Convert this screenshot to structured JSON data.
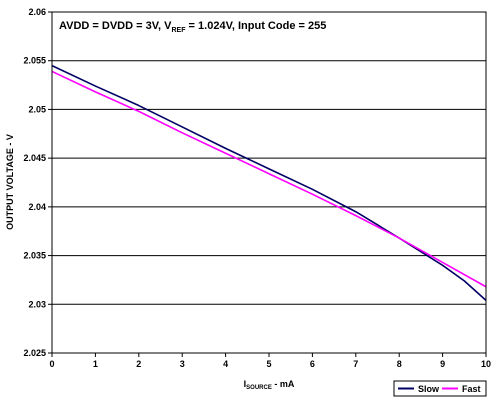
{
  "chart_data": {
    "type": "line",
    "annotation": {
      "prefix": "AVDD = DVDD = 3V, V",
      "sub": "REF",
      "suffix": " = 1.024V, Input Code = 255"
    },
    "xlabel": {
      "main": "I",
      "sub": "SOURCE",
      "suffix": " - mA"
    },
    "ylabel": "OUTPUT VOLTAGE  - V",
    "xlim": [
      0,
      10
    ],
    "ylim": [
      2.025,
      2.06
    ],
    "xticks": [
      "0",
      "1",
      "2",
      "3",
      "4",
      "5",
      "6",
      "7",
      "8",
      "9",
      "10"
    ],
    "yticks": [
      "2.025",
      "2.03",
      "2.035",
      "2.04",
      "2.045",
      "2.05",
      "2.055",
      "2.06"
    ],
    "grid": true,
    "legend_position": "bottom-right",
    "series": [
      {
        "name": "Slow",
        "color": "#000066",
        "x": [
          0,
          1,
          2,
          3,
          4,
          5,
          6,
          7,
          8,
          8.5,
          9,
          9.5,
          10
        ],
        "y": [
          2.0545,
          2.0524,
          2.0504,
          2.0482,
          2.046,
          2.0439,
          2.0418,
          2.0395,
          2.0368,
          2.0354,
          2.034,
          2.0324,
          2.0304
        ]
      },
      {
        "name": "Fast",
        "color": "#ff00ff",
        "x": [
          0,
          1,
          2,
          3,
          4,
          5,
          6,
          7,
          8,
          9,
          10
        ],
        "y": [
          2.0539,
          2.0518,
          2.0498,
          2.0476,
          2.0455,
          2.0434,
          2.0413,
          2.0391,
          2.0368,
          2.0343,
          2.0318
        ]
      }
    ]
  }
}
